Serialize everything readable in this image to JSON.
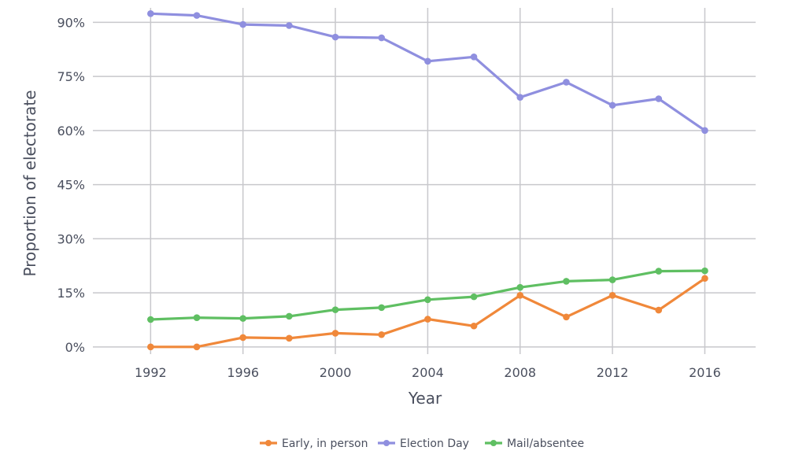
{
  "chart_data": {
    "type": "line",
    "xlabel": "Year",
    "ylabel": "Proportion of electorate",
    "x": [
      1992,
      1994,
      1996,
      1998,
      2000,
      2002,
      2004,
      2006,
      2008,
      2010,
      2012,
      2014,
      2016
    ],
    "x_ticks": [
      1992,
      1996,
      2000,
      2004,
      2008,
      2012,
      2016
    ],
    "x_tick_labels": [
      "1992",
      "1996",
      "2000",
      "2004",
      "2008",
      "2012",
      "2016"
    ],
    "xlim": [
      1989.5,
      2018.2
    ],
    "ylim": [
      -2,
      94
    ],
    "y_ticks": [
      0,
      15,
      30,
      45,
      60,
      75,
      90
    ],
    "y_tick_labels": [
      "0%",
      "15%",
      "30%",
      "45%",
      "60%",
      "75%",
      "90%"
    ],
    "grid": true,
    "legend_position": "bottom",
    "series": [
      {
        "name": "Early, in person",
        "color": "#f0883a",
        "values": [
          0.0,
          0.0,
          2.6,
          2.4,
          3.8,
          3.4,
          7.7,
          5.8,
          14.3,
          8.3,
          14.3,
          10.2,
          19.0
        ]
      },
      {
        "name": "Election Day",
        "color": "#8f8fdf",
        "values": [
          92.4,
          91.9,
          89.4,
          89.1,
          85.9,
          85.7,
          79.2,
          80.4,
          69.2,
          73.4,
          67.0,
          68.8,
          60.0
        ]
      },
      {
        "name": "Mail/absentee",
        "color": "#5fbf62",
        "values": [
          7.6,
          8.1,
          7.9,
          8.5,
          10.3,
          10.9,
          13.1,
          13.9,
          16.5,
          18.2,
          18.6,
          21.0,
          21.1
        ]
      }
    ]
  }
}
